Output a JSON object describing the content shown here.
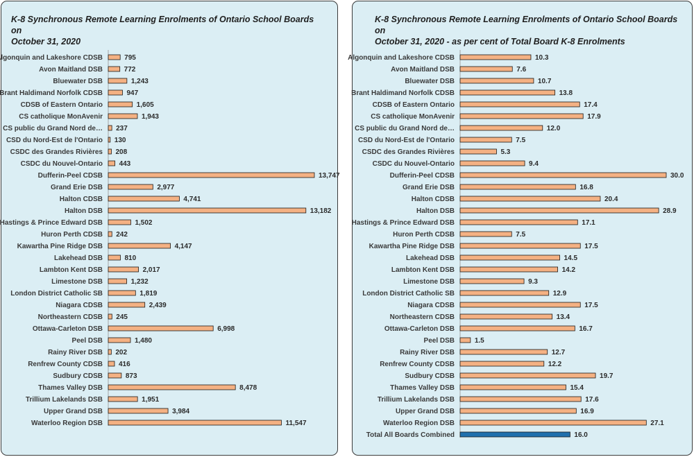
{
  "colors": {
    "bar_fill": "#f4b183",
    "bar_stroke": "#1a1a1a",
    "total_bar_fill": "#1f6fad",
    "panel_bg": "#dbeef4",
    "axis": "#a6a6a6"
  },
  "chart_data": [
    {
      "type": "bar",
      "orientation": "horizontal",
      "title": "K-8 Synchronous Remote Learning Enrolments of Ontario School Boards on\nOctober 31, 2020",
      "xlim": [
        0,
        13747
      ],
      "categories": [
        "Algonquin and Lakeshore CDSB",
        "Avon Maitland DSB",
        "Bluewater DSB",
        "Brant Haldimand Norfolk CDSB",
        "CDSB of Eastern Ontario",
        "CS catholique MonAvenir",
        "CS public du Grand Nord de…",
        "CSD du Nord-Est de l'Ontario",
        "CSDC des Grandes Rivières",
        "CSDC du Nouvel-Ontario",
        "Dufferin-Peel CDSB",
        "Grand Erie DSB",
        "Halton CDSB",
        "Halton DSB",
        "Hastings & Prince Edward DSB",
        "Huron Perth CDSB",
        "Kawartha Pine Ridge DSB",
        "Lakehead DSB",
        "Lambton Kent DSB",
        "Limestone DSB",
        "London District Catholic SB",
        "Niagara CDSB",
        "Northeastern CDSB",
        "Ottawa-Carleton DSB",
        "Peel DSB",
        "Rainy River DSB",
        "Renfrew County CDSB",
        "Sudbury CDSB",
        "Thames Valley DSB",
        "Trillium Lakelands DSB",
        "Upper Grand DSB",
        "Waterloo Region DSB"
      ],
      "values": [
        795,
        772,
        1243,
        947,
        1605,
        1943,
        237,
        130,
        208,
        443,
        13747,
        2977,
        4741,
        13182,
        1502,
        242,
        4147,
        810,
        2017,
        1232,
        1819,
        2439,
        245,
        6998,
        1480,
        202,
        416,
        873,
        8478,
        1951,
        3984,
        11547
      ],
      "value_labels": [
        "795",
        "772",
        "1,243",
        "947",
        "1,605",
        "1,943",
        "237",
        "130",
        "208",
        "443",
        "13,747",
        "2,977",
        "4,741",
        "13,182",
        "1,502",
        "242",
        "4,147",
        "810",
        "2,017",
        "1,232",
        "1,819",
        "2,439",
        "245",
        "6,998",
        "1,480",
        "202",
        "416",
        "873",
        "8,478",
        "1,951",
        "3,984",
        "11,547"
      ]
    },
    {
      "type": "bar",
      "orientation": "horizontal",
      "title": "K-8 Synchronous Remote Learning Enrolments of Ontario School Boards on\nOctober 31, 2020  - as per cent of Total Board K-8 Enrolments",
      "xlim": [
        0,
        30.0
      ],
      "categories": [
        "Algonquin and Lakeshore CDSB",
        "Avon Maitland DSB",
        "Bluewater DSB",
        "Brant Haldimand Norfolk CDSB",
        "CDSB of Eastern Ontario",
        "CS catholique MonAvenir",
        "CS public du Grand Nord de…",
        "CSD du Nord-Est de l'Ontario",
        "CSDC des Grandes Rivières",
        "CSDC du Nouvel-Ontario",
        "Dufferin-Peel CDSB",
        "Grand Erie DSB",
        "Halton CDSB",
        "Halton DSB",
        "Hastings & Prince Edward DSB",
        "Huron Perth CDSB",
        "Kawartha Pine Ridge DSB",
        "Lakehead DSB",
        "Lambton Kent DSB",
        "Limestone DSB",
        "London District Catholic SB",
        "Niagara CDSB",
        "Northeastern CDSB",
        "Ottawa-Carleton DSB",
        "Peel DSB",
        "Rainy River DSB",
        "Renfrew County CDSB",
        "Sudbury CDSB",
        "Thames Valley DSB",
        "Trillium Lakelands DSB",
        "Upper Grand DSB",
        "Waterloo Region DSB",
        "Total All Boards Combined"
      ],
      "values": [
        10.3,
        7.6,
        10.7,
        13.8,
        17.4,
        17.9,
        12.0,
        7.5,
        5.3,
        9.4,
        30.0,
        16.8,
        20.4,
        28.9,
        17.1,
        7.5,
        17.5,
        14.5,
        14.2,
        9.3,
        12.9,
        17.5,
        13.4,
        16.7,
        1.5,
        12.7,
        12.2,
        19.7,
        15.4,
        17.6,
        16.9,
        27.1,
        16.0
      ],
      "value_labels": [
        "10.3",
        "7.6",
        "10.7",
        "13.8",
        "17.4",
        "17.9",
        "12.0",
        "7.5",
        "5.3",
        "9.4",
        "30.0",
        "16.8",
        "20.4",
        "28.9",
        "17.1",
        "7.5",
        "17.5",
        "14.5",
        "14.2",
        "9.3",
        "12.9",
        "17.5",
        "13.4",
        "16.7",
        "1.5",
        "12.7",
        "12.2",
        "19.7",
        "15.4",
        "17.6",
        "16.9",
        "27.1",
        "16.0"
      ],
      "highlight_category": "Total All Boards Combined"
    }
  ]
}
